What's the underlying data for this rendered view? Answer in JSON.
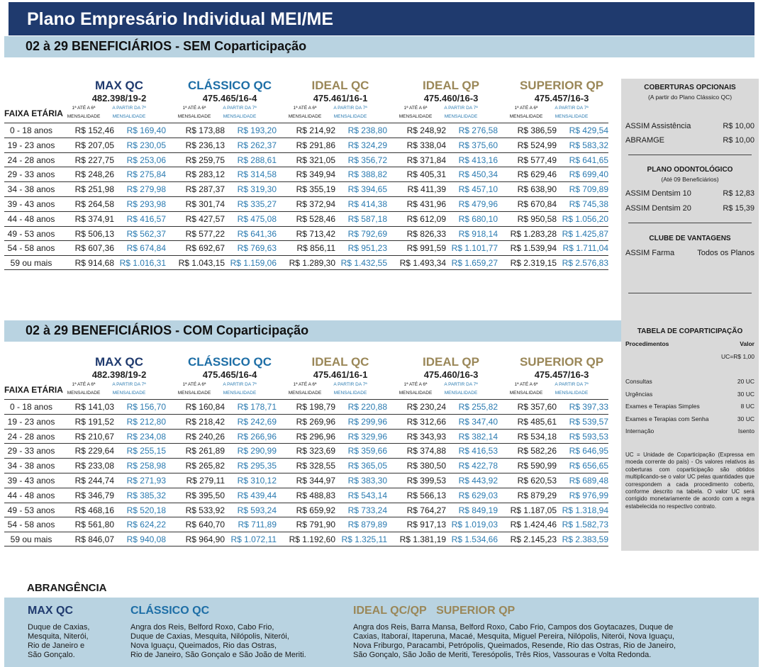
{
  "title": "Plano Empresário Individual MEI/ME",
  "sections": [
    {
      "heading": "02 à 29 BENEFICIÁRIOS - SEM Coparticipação",
      "rows": [
        [
          "0 - 18 anos",
          "R$ 152,46",
          "R$ 169,40",
          "R$ 173,88",
          "R$ 193,20",
          "R$ 214,92",
          "R$ 238,80",
          "R$ 248,92",
          "R$ 276,58",
          "R$ 386,59",
          "R$ 429,54"
        ],
        [
          "19 - 23 anos",
          "R$ 207,05",
          "R$ 230,05",
          "R$ 236,13",
          "R$ 262,37",
          "R$ 291,86",
          "R$ 324,29",
          "R$ 338,04",
          "R$ 375,60",
          "R$ 524,99",
          "R$ 583,32"
        ],
        [
          "24 - 28 anos",
          "R$ 227,75",
          "R$ 253,06",
          "R$ 259,75",
          "R$ 288,61",
          "R$ 321,05",
          "R$ 356,72",
          "R$ 371,84",
          "R$ 413,16",
          "R$ 577,49",
          "R$ 641,65"
        ],
        [
          "29 - 33 anos",
          "R$ 248,26",
          "R$ 275,84",
          "R$ 283,12",
          "R$ 314,58",
          "R$ 349,94",
          "R$ 388,82",
          "R$ 405,31",
          "R$ 450,34",
          "R$ 629,46",
          "R$ 699,40"
        ],
        [
          "34 - 38 anos",
          "R$ 251,98",
          "R$ 279,98",
          "R$ 287,37",
          "R$ 319,30",
          "R$ 355,19",
          "R$ 394,65",
          "R$ 411,39",
          "R$ 457,10",
          "R$ 638,90",
          "R$ 709,89"
        ],
        [
          "39 - 43 anos",
          "R$ 264,58",
          "R$ 293,98",
          "R$ 301,74",
          "R$ 335,27",
          "R$ 372,94",
          "R$ 414,38",
          "R$ 431,96",
          "R$ 479,96",
          "R$ 670,84",
          "R$ 745,38"
        ],
        [
          "44 - 48 anos",
          "R$ 374,91",
          "R$ 416,57",
          "R$ 427,57",
          "R$ 475,08",
          "R$ 528,46",
          "R$ 587,18",
          "R$ 612,09",
          "R$ 680,10",
          "R$ 950,58",
          "R$ 1.056,20"
        ],
        [
          "49 - 53 anos",
          "R$ 506,13",
          "R$ 562,37",
          "R$ 577,22",
          "R$ 641,36",
          "R$ 713,42",
          "R$ 792,69",
          "R$ 826,33",
          "R$ 918,14",
          "R$ 1.283,28",
          "R$ 1.425,87"
        ],
        [
          "54 - 58 anos",
          "R$ 607,36",
          "R$ 674,84",
          "R$ 692,67",
          "R$ 769,63",
          "R$ 856,11",
          "R$ 951,23",
          "R$ 991,59",
          "R$ 1.101,77",
          "R$ 1.539,94",
          "R$ 1.711,04"
        ],
        [
          "59 ou mais",
          "R$ 914,68",
          "R$ 1.016,31",
          "R$ 1.043,15",
          "R$ 1.159,06",
          "R$ 1.289,30",
          "R$ 1.432,55",
          "R$ 1.493,34",
          "R$ 1.659,27",
          "R$ 2.319,15",
          "R$ 2.576,83"
        ]
      ]
    },
    {
      "heading": "02 à 29 BENEFICIÁRIOS - COM Coparticipação",
      "rows": [
        [
          "0 - 18 anos",
          "R$ 141,03",
          "R$ 156,70",
          "R$ 160,84",
          "R$ 178,71",
          "R$ 198,79",
          "R$ 220,88",
          "R$ 230,24",
          "R$ 255,82",
          "R$ 357,60",
          "R$ 397,33"
        ],
        [
          "19 - 23 anos",
          "R$ 191,52",
          "R$ 212,80",
          "R$ 218,42",
          "R$ 242,69",
          "R$ 269,96",
          "R$ 299,96",
          "R$ 312,66",
          "R$ 347,40",
          "R$ 485,61",
          "R$ 539,57"
        ],
        [
          "24 - 28 anos",
          "R$ 210,67",
          "R$ 234,08",
          "R$ 240,26",
          "R$ 266,96",
          "R$ 296,96",
          "R$ 329,96",
          "R$ 343,93",
          "R$ 382,14",
          "R$ 534,18",
          "R$ 593,53"
        ],
        [
          "29 - 33 anos",
          "R$ 229,64",
          "R$ 255,15",
          "R$ 261,89",
          "R$ 290,99",
          "R$ 323,69",
          "R$ 359,66",
          "R$ 374,88",
          "R$ 416,53",
          "R$ 582,26",
          "R$ 646,95"
        ],
        [
          "34 - 38 anos",
          "R$ 233,08",
          "R$ 258,98",
          "R$ 265,82",
          "R$ 295,35",
          "R$ 328,55",
          "R$ 365,05",
          "R$ 380,50",
          "R$ 422,78",
          "R$ 590,99",
          "R$ 656,65"
        ],
        [
          "39 - 43 anos",
          "R$ 244,74",
          "R$ 271,93",
          "R$ 279,11",
          "R$ 310,12",
          "R$ 344,97",
          "R$ 383,30",
          "R$ 399,53",
          "R$ 443,92",
          "R$ 620,53",
          "R$ 689,48"
        ],
        [
          "44 - 48 anos",
          "R$ 346,79",
          "R$ 385,32",
          "R$ 395,50",
          "R$ 439,44",
          "R$ 488,83",
          "R$ 543,14",
          "R$ 566,13",
          "R$ 629,03",
          "R$ 879,29",
          "R$ 976,99"
        ],
        [
          "49 - 53 anos",
          "R$ 468,16",
          "R$ 520,18",
          "R$ 533,92",
          "R$ 593,24",
          "R$ 659,92",
          "R$ 733,24",
          "R$ 764,27",
          "R$ 849,19",
          "R$ 1.187,05",
          "R$ 1.318,94"
        ],
        [
          "54 - 58 anos",
          "R$ 561,80",
          "R$ 624,22",
          "R$ 640,70",
          "R$ 711,89",
          "R$ 791,90",
          "R$ 879,89",
          "R$ 917,13",
          "R$ 1.019,03",
          "R$ 1.424,46",
          "R$ 1.582,73"
        ],
        [
          "59 ou mais",
          "R$ 846,07",
          "R$ 940,08",
          "R$ 964,90",
          "R$ 1.072,11",
          "R$ 1.192,60",
          "R$ 1.325,11",
          "R$ 1.381,19",
          "R$ 1.534,66",
          "R$ 2.145,23",
          "R$ 2.383,59"
        ]
      ]
    }
  ],
  "plans": [
    {
      "name": "MAX QC",
      "reg": "482.398/19-2",
      "color": "#1f3a6e"
    },
    {
      "name": "CLÁSSICO QC",
      "reg": "475.465/16-4",
      "color": "#1d6ea6"
    },
    {
      "name": "IDEAL QC",
      "reg": "475.461/16-1",
      "color": "#9a8758"
    },
    {
      "name": "IDEAL QP",
      "reg": "475.460/16-3",
      "color": "#9a8758"
    },
    {
      "name": "SUPERIOR QP",
      "reg": "475.457/16-3",
      "color": "#9a8758"
    }
  ],
  "faixa_label": "FAIXA ETÁRIA",
  "sub_a1": "1ª ATÉ A 6ª",
  "sub_a2": "MENSALIDADE",
  "sub_b1": "A PARTIR DA 7ª",
  "sub_b2": "MENSALIDADE",
  "side": {
    "cob_title": "COBERTURAS OPCIONAIS",
    "cob_sub": "(A partir do Plano Clássico QC)",
    "cob_items": [
      [
        "ASSIM Assistência",
        "R$ 10,00"
      ],
      [
        "ABRAMGE",
        "R$ 10,00"
      ]
    ],
    "odonto_title": "PLANO ODONTOLÓGICO",
    "odonto_sub": "(Até 09 Beneficiários)",
    "odonto_items": [
      [
        "ASSIM Dentsim 10",
        "R$ 12,83"
      ],
      [
        "ASSIM Dentsim 20",
        "R$ 15,39"
      ]
    ],
    "clube_title": "CLUBE DE VANTAGENS",
    "clube_items": [
      [
        "ASSIM Farma",
        "Todos os Planos"
      ]
    ],
    "copart_title": "TABELA DE COPARTICIPAÇÃO",
    "copart_head": [
      "Procedimentos",
      "Valor"
    ],
    "copart_uc": "UC=R$ 1,00",
    "copart_items": [
      [
        "Consultas",
        "20 UC"
      ],
      [
        "Urgências",
        "30 UC"
      ],
      [
        "Exames e Terapias Simples",
        "8 UC"
      ],
      [
        "Exames e Terapias com Senha",
        "30 UC"
      ],
      [
        "Internação",
        "Isento"
      ]
    ],
    "note": "UC = Unidade de Coparticipação (Expressa em moeda corrente do país) - Os valores relativos às coberturas com coparticipação são obtidos multiplicando-se o valor UC pelas quantidades que correspondem a cada procedimento coberto, conforme descrito na tabela. O valor UC será corrigido monetariamente de acordo com a regra estabelecida no respectivo contrato."
  },
  "abrangencia": {
    "title": "ABRANGÊNCIA",
    "max_name": "MAX QC",
    "max_text": [
      "Duque de Caxias,",
      "Mesquita, Niterói,",
      "Rio de Janeiro e",
      "São Gonçalo."
    ],
    "classico_name": "CLÁSSICO QC",
    "classico_text": [
      "Angra dos Reis, Belford Roxo, Cabo Frio,",
      "Duque de Caxias, Mesquita, Nilópolis, Niterói,",
      "Nova Iguaçu, Queimados, Rio das Ostras,",
      "Rio de Janeiro, São Gonçalo e São João de Meriti."
    ],
    "ideal_name": "IDEAL QC/QP",
    "superior_name": "SUPERIOR QP",
    "ideal_text": [
      "Angra dos Reis, Barra Mansa, Belford Roxo, Cabo Frio, Campos dos Goytacazes, Duque de",
      "Caxias, Itaboraí, Itaperuna, Macaé, Mesquita, Miguel Pereira, Nilópolis, Niterói, Nova Iguaçu,",
      "Nova Friburgo, Paracambi, Petrópolis, Queimados, Resende, Rio das Ostras, Rio de Janeiro,",
      "São Gonçalo, São João de Meriti, Teresópolis, Três Rios, Vassouras e Volta Redonda."
    ]
  }
}
